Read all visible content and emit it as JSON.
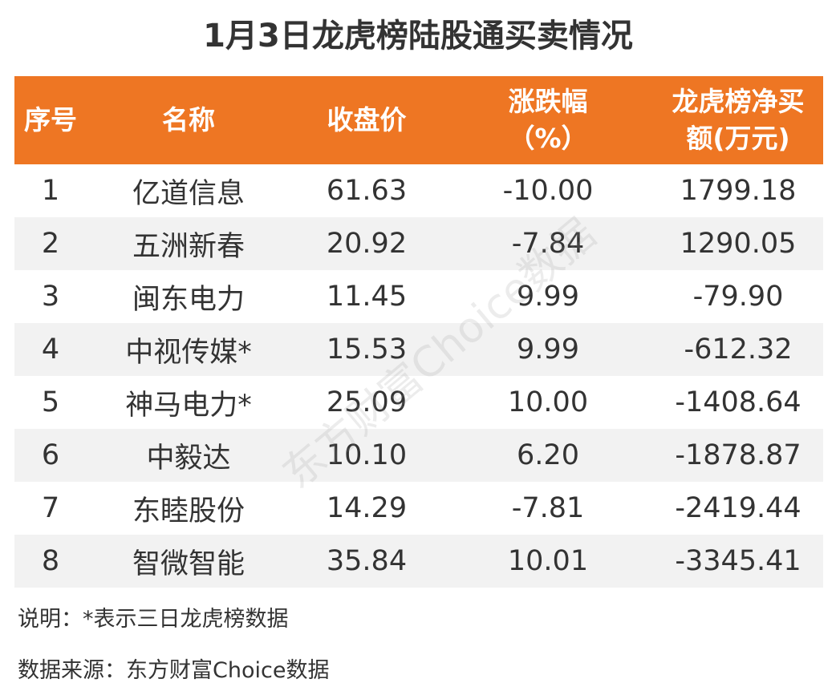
{
  "title": "1月3日龙虎榜陆股通买卖情况",
  "table": {
    "headers": [
      [
        "序号"
      ],
      [
        "名称"
      ],
      [
        "收盘价"
      ],
      [
        "涨跌幅",
        "（%）"
      ],
      [
        "龙虎榜净买",
        "额(万元)"
      ]
    ],
    "rows": [
      [
        "1",
        "亿道信息",
        "61.63",
        "-10.00",
        "1799.18"
      ],
      [
        "2",
        "五洲新春",
        "20.92",
        "-7.84",
        "1290.05"
      ],
      [
        "3",
        "闽东电力",
        "11.45",
        "9.99",
        "-79.90"
      ],
      [
        "4",
        "中视传媒*",
        "15.53",
        "9.99",
        "-612.32"
      ],
      [
        "5",
        "神马电力*",
        "25.09",
        "10.00",
        "-1408.64"
      ],
      [
        "6",
        "中毅达",
        "10.10",
        "6.20",
        "-1878.87"
      ],
      [
        "7",
        "东睦股份",
        "14.29",
        "-7.81",
        "-2419.44"
      ],
      [
        "8",
        "智微智能",
        "35.84",
        "10.01",
        "-3345.41"
      ]
    ]
  },
  "note": "说明：*表示三日龙虎榜数据",
  "source": "数据来源：东方财富Choice数据",
  "watermark": "东方财富Choice数据"
}
